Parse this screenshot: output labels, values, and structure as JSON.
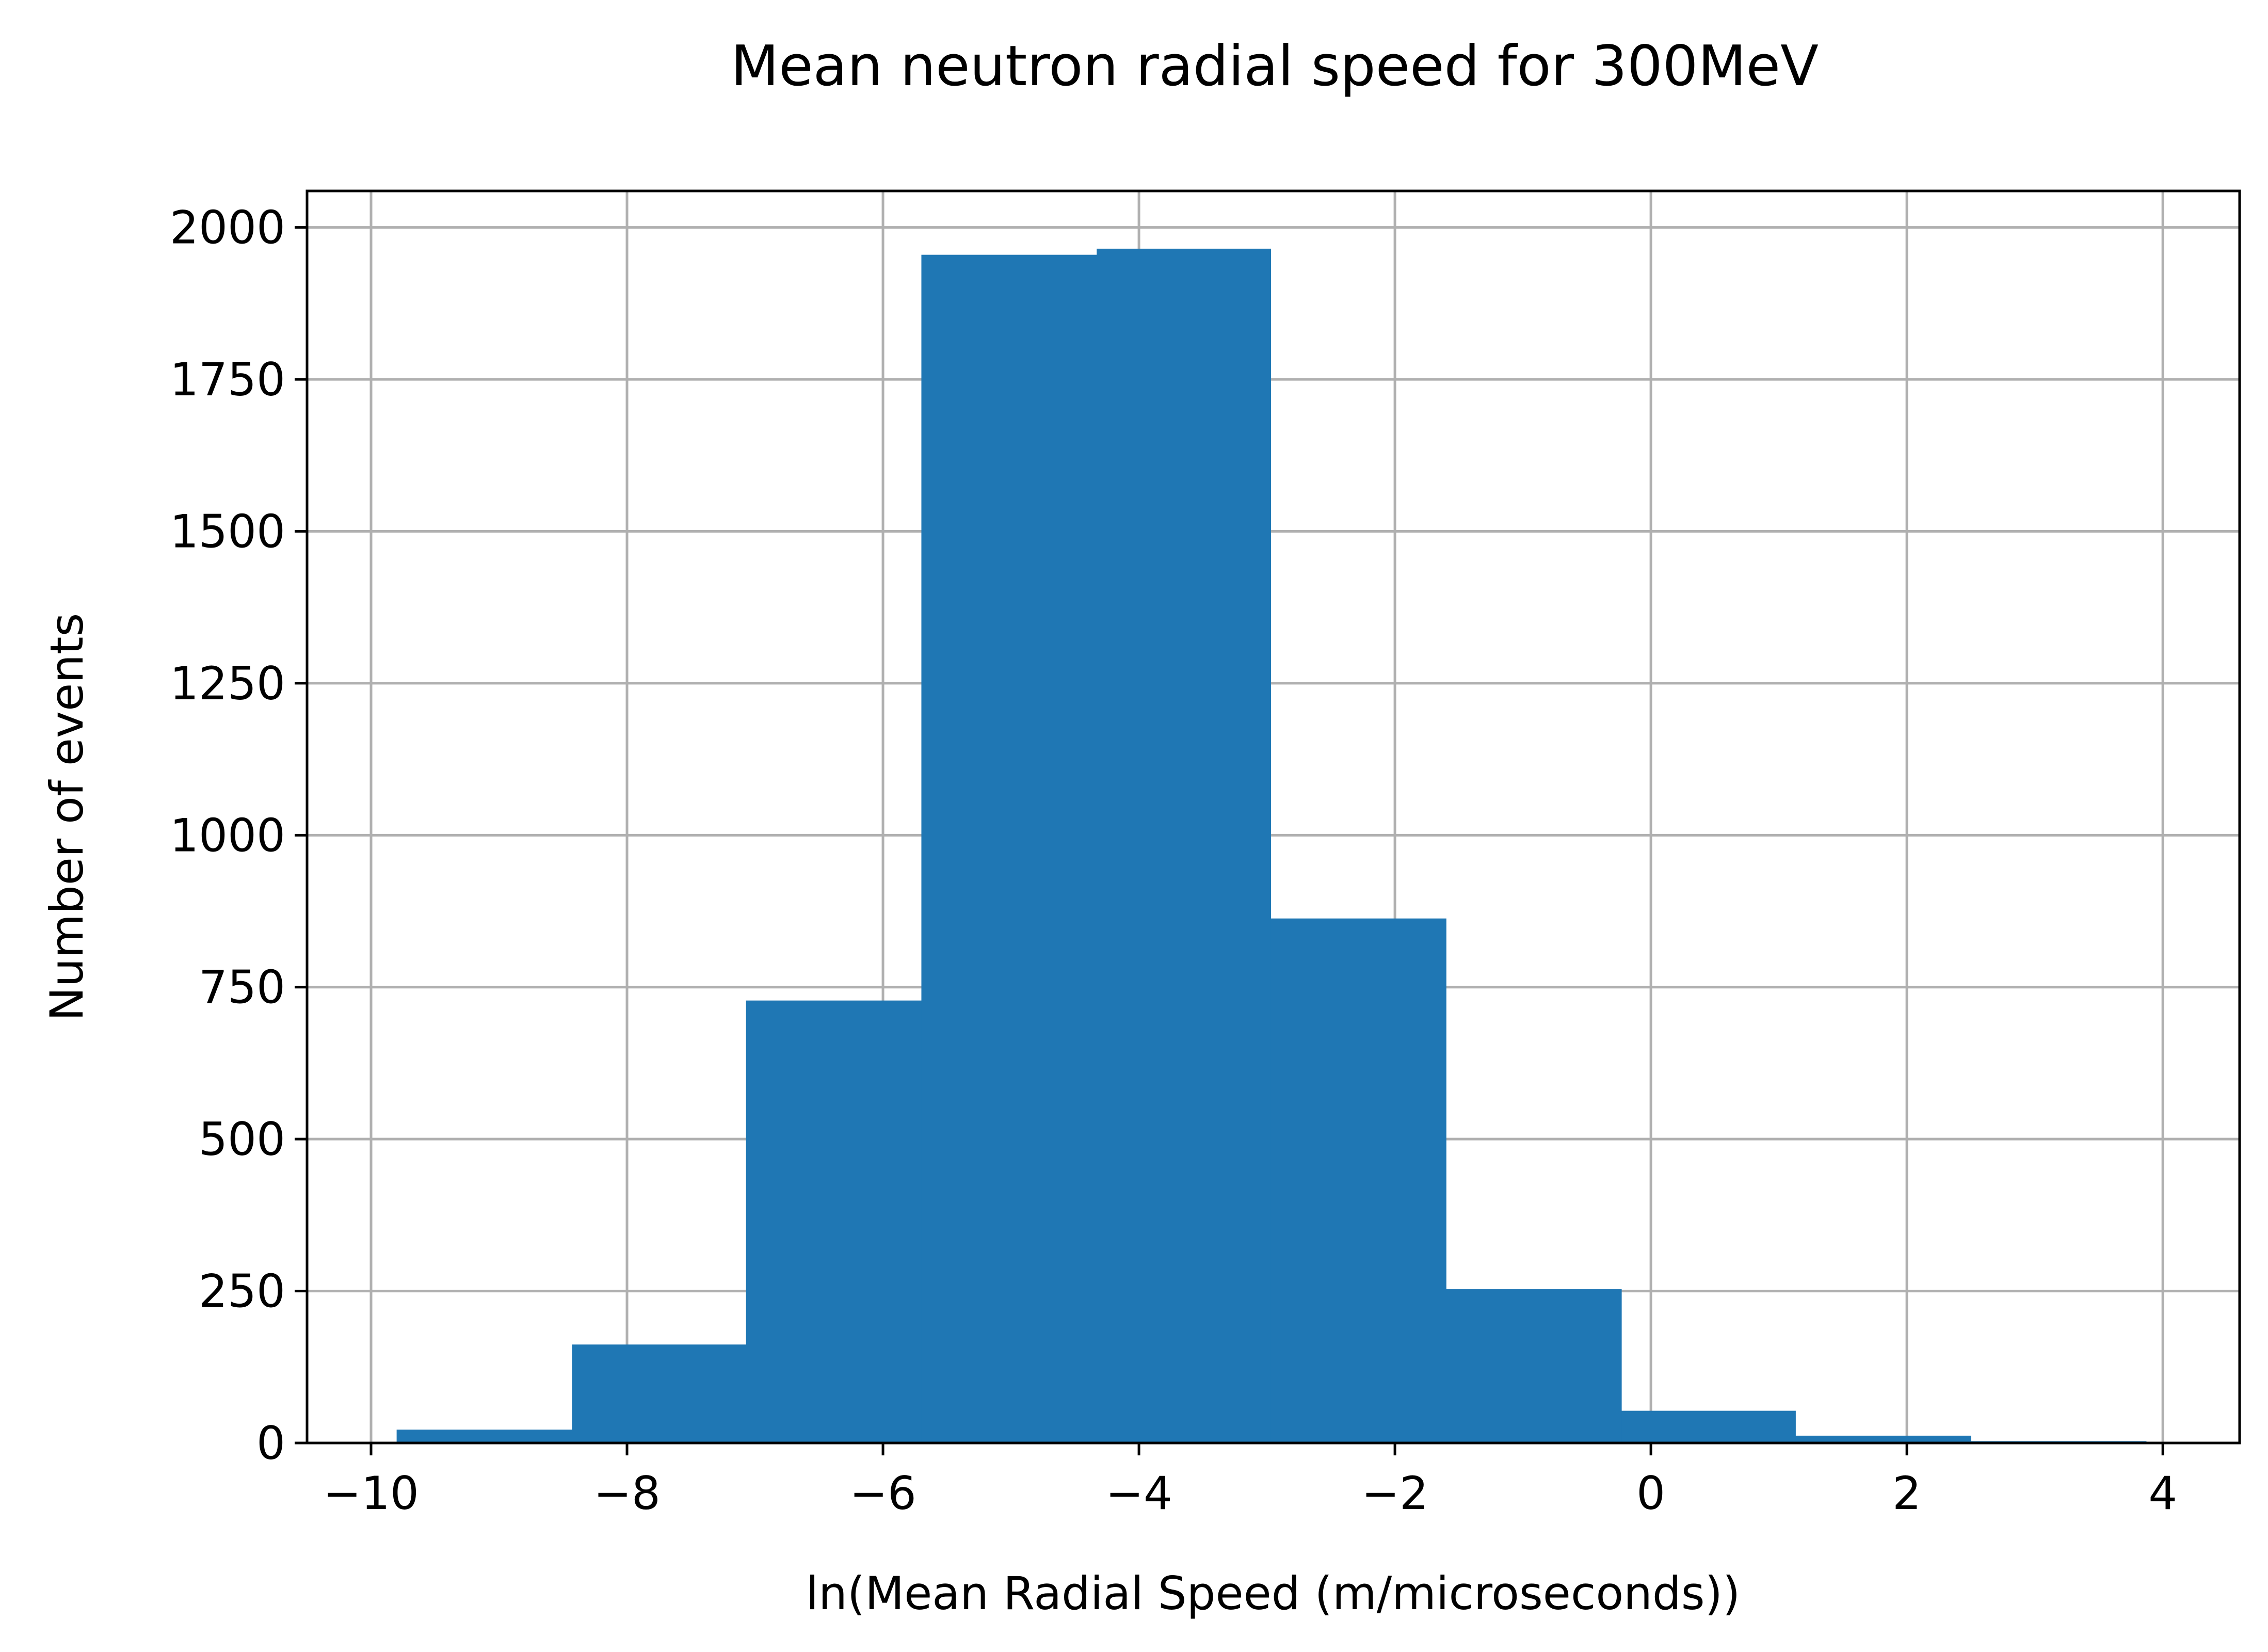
{
  "chart_data": {
    "type": "bar",
    "title": "Mean neutron radial speed for 300MeV",
    "xlabel": "ln(Mean Radial Speed (m/microseconds))",
    "ylabel": "Number of events",
    "bin_edges": [
      -9.8,
      -8.43,
      -7.07,
      -5.7,
      -4.33,
      -2.97,
      -1.6,
      -0.23,
      1.13,
      2.5,
      3.87
    ],
    "values": [
      22,
      162,
      728,
      1955,
      1965,
      863,
      253,
      53,
      12,
      3
    ],
    "xlim": [
      -10.5,
      4.6
    ],
    "ylim": [
      0,
      2060
    ],
    "xticks": [
      -10,
      -8,
      -6,
      -4,
      -2,
      0,
      2,
      4
    ],
    "xtick_labels": [
      "−10",
      "−8",
      "−6",
      "−4",
      "−2",
      "0",
      "2",
      "4"
    ],
    "yticks": [
      0,
      250,
      500,
      750,
      1000,
      1250,
      1500,
      1750,
      2000
    ],
    "ytick_labels": [
      "0",
      "250",
      "500",
      "750",
      "1000",
      "1250",
      "1500",
      "1750",
      "2000"
    ],
    "grid": true,
    "bar_color": "#1f77b4"
  }
}
